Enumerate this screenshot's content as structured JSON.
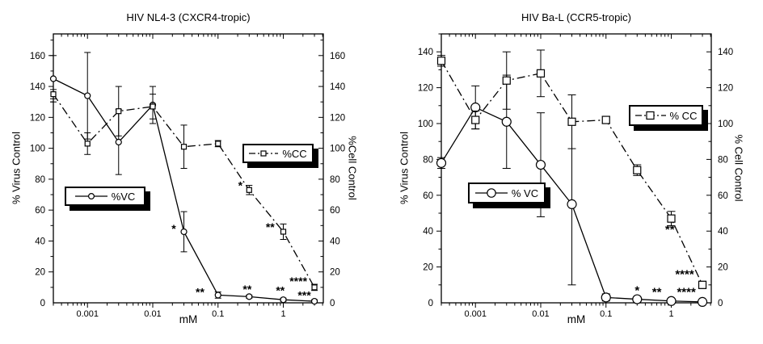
{
  "figure": {
    "background": "#ffffff",
    "ink": "#000000"
  },
  "chart_data": [
    {
      "id": "hiv-nl43",
      "type": "line",
      "title": "HIV NL4-3 (CXCR4-tropic)",
      "xlabel": "mM",
      "ylabel_left": "% Virus Control",
      "ylabel_right": "%Cell Control",
      "xscale": "log",
      "xlim": [
        0.0003,
        4.1
      ],
      "ylim": [
        0,
        174
      ],
      "yticks_major": [
        0,
        20,
        40,
        60,
        80,
        100,
        120,
        140,
        160
      ],
      "ytick_minor_step": 10,
      "xticks_labeled": [
        "0.001",
        "0.01",
        "0.1",
        "1"
      ],
      "x": [
        0.0003,
        0.001,
        0.003,
        0.01,
        0.03,
        0.1,
        0.3,
        1,
        3
      ],
      "series": [
        {
          "name": "%VC",
          "marker": "circle",
          "linestyle": "solid",
          "values": [
            145,
            134,
            104,
            128,
            46,
            5,
            4,
            2,
            1
          ],
          "err": [
            15,
            28,
            21,
            12,
            13,
            2,
            1,
            1,
            1
          ]
        },
        {
          "name": "%CC",
          "marker": "square",
          "linestyle": "dashdot",
          "values": [
            135,
            103,
            124,
            127,
            101,
            103,
            73,
            46,
            10
          ],
          "err": [
            3,
            7,
            16,
            8,
            14,
            2,
            3,
            5,
            2
          ]
        }
      ],
      "annotations": [
        {
          "text": "*",
          "x": 0.021,
          "y": 48
        },
        {
          "text": "**",
          "x": 0.053,
          "y": 7
        },
        {
          "text": "**",
          "x": 0.28,
          "y": 9
        },
        {
          "text": "**",
          "x": 0.9,
          "y": 8
        },
        {
          "text": "****",
          "x": 1.7,
          "y": 14
        },
        {
          "text": "***",
          "x": 2.1,
          "y": 5
        },
        {
          "text": "*",
          "x": 0.22,
          "y": 76
        },
        {
          "text": "**",
          "x": 0.63,
          "y": 49
        }
      ],
      "legend": [
        {
          "label": "%VC",
          "marker": "circle",
          "linestyle": "solid"
        },
        {
          "label": "%CC",
          "marker": "square",
          "linestyle": "dashdot"
        }
      ]
    },
    {
      "id": "hiv-bal",
      "type": "line",
      "title": "HIV Ba-L (CCR5-tropic)",
      "xlabel": "mM",
      "ylabel_left": "% Virus Control",
      "ylabel_right": "% Cell Control",
      "xscale": "log",
      "xlim": [
        0.0003,
        4.1
      ],
      "ylim": [
        0,
        150
      ],
      "yticks_major": [
        0,
        20,
        40,
        60,
        80,
        100,
        120,
        140
      ],
      "ytick_minor_step": 10,
      "xticks_labeled": [
        "0.001",
        "0.01",
        "0.1",
        "1"
      ],
      "x": [
        0.0003,
        0.001,
        0.003,
        0.01,
        0.03,
        0.1,
        0.3,
        1,
        3
      ],
      "series": [
        {
          "name": "% VC",
          "marker": "circle",
          "linestyle": "solid",
          "values": [
            78,
            109,
            101,
            77,
            55,
            3,
            2,
            1,
            0.5
          ],
          "err": [
            3,
            12,
            26,
            29,
            45,
            2,
            1,
            1,
            0.5
          ]
        },
        {
          "name": "% CC",
          "marker": "square",
          "linestyle": "dashdot",
          "values": [
            135,
            102,
            124,
            128,
            101,
            102,
            74,
            47,
            10
          ],
          "err": [
            3,
            5,
            16,
            13,
            15,
            2,
            3,
            4,
            2
          ]
        }
      ],
      "annotations": [
        {
          "text": "*",
          "x": 0.3,
          "y": 7
        },
        {
          "text": "**",
          "x": 0.6,
          "y": 6
        },
        {
          "text": "****",
          "x": 1.7,
          "y": 6
        },
        {
          "text": "****",
          "x": 1.6,
          "y": 16
        },
        {
          "text": "**",
          "x": 0.95,
          "y": 41
        }
      ],
      "legend": [
        {
          "label": "% VC",
          "marker": "circle",
          "linestyle": "solid"
        },
        {
          "label": "% CC",
          "marker": "square",
          "linestyle": "dashdot"
        }
      ]
    }
  ]
}
